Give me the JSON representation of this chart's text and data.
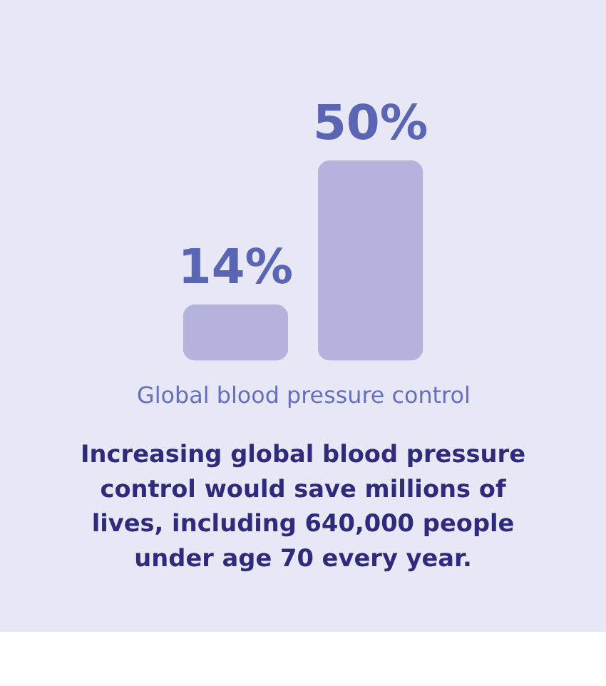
{
  "chart_data": {
    "type": "bar",
    "categories": [
      null,
      null
    ],
    "values": [
      14,
      50
    ],
    "value_labels": [
      "14%",
      "50%"
    ],
    "color": "#b3b3dd",
    "xlabel": "Global blood pressure control",
    "annotations": [
      "Increasing global blood pressure\ncontrol would save millions of\nlives, including 640,000 people\nunder age 70 every year."
    ]
  }
}
